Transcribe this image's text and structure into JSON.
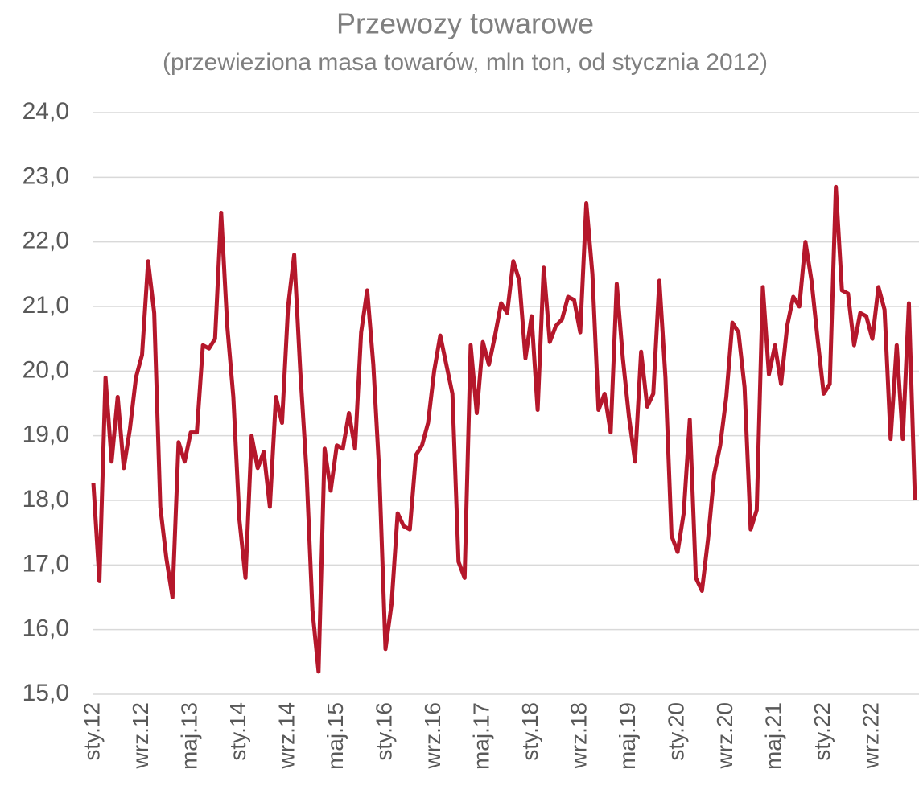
{
  "chart_data": {
    "type": "line",
    "title": "Przewozy towarowe",
    "subtitle": "(przewieziona masa towarów, mln ton, od stycznia 2012)",
    "categories": [
      "sty.12",
      null,
      null,
      null,
      null,
      null,
      null,
      null,
      "wrz.12",
      null,
      null,
      null,
      null,
      null,
      null,
      null,
      "maj.13",
      null,
      null,
      null,
      null,
      null,
      null,
      null,
      "sty.14",
      null,
      null,
      null,
      null,
      null,
      null,
      null,
      "wrz.14",
      null,
      null,
      null,
      null,
      null,
      null,
      null,
      "maj.15",
      null,
      null,
      null,
      null,
      null,
      null,
      null,
      "sty.16",
      null,
      null,
      null,
      null,
      null,
      null,
      null,
      "wrz.16",
      null,
      null,
      null,
      null,
      null,
      null,
      null,
      "maj.17",
      null,
      null,
      null,
      null,
      null,
      null,
      null,
      "sty.18",
      null,
      null,
      null,
      null,
      null,
      null,
      null,
      "wrz.18",
      null,
      null,
      null,
      null,
      null,
      null,
      null,
      "maj.19",
      null,
      null,
      null,
      null,
      null,
      null,
      null,
      "sty.20",
      null,
      null,
      null,
      null,
      null,
      null,
      null,
      "wrz.20",
      null,
      null,
      null,
      null,
      null,
      null,
      null,
      "maj.21",
      null,
      null,
      null,
      null,
      null,
      null,
      null,
      "sty.22",
      null,
      null,
      null,
      null,
      null,
      null,
      null,
      "wrz.22",
      null,
      null,
      null,
      null,
      null,
      null,
      null
    ],
    "values": [
      18.27,
      16.75,
      19.9,
      18.6,
      19.6,
      18.5,
      19.1,
      19.9,
      20.25,
      21.7,
      20.9,
      17.9,
      17.1,
      16.5,
      18.9,
      18.6,
      19.05,
      19.05,
      20.4,
      20.35,
      20.5,
      22.45,
      20.7,
      19.6,
      17.7,
      16.8,
      19.0,
      18.5,
      18.75,
      17.9,
      19.6,
      19.2,
      21.0,
      21.8,
      20.0,
      18.5,
      16.3,
      15.35,
      18.8,
      18.15,
      18.85,
      18.8,
      19.35,
      18.8,
      20.6,
      21.25,
      20.1,
      18.4,
      15.7,
      16.4,
      17.8,
      17.6,
      17.55,
      18.7,
      18.85,
      19.2,
      20.0,
      20.55,
      20.1,
      19.65,
      17.05,
      16.8,
      20.4,
      19.35,
      20.45,
      20.1,
      20.55,
      21.05,
      20.9,
      21.7,
      21.4,
      20.2,
      20.85,
      19.4,
      21.6,
      20.45,
      20.7,
      20.8,
      21.15,
      21.1,
      20.6,
      22.6,
      21.5,
      19.4,
      19.65,
      19.05,
      21.35,
      20.2,
      19.3,
      18.6,
      20.3,
      19.45,
      19.65,
      21.4,
      19.9,
      17.45,
      17.2,
      17.8,
      19.25,
      16.8,
      16.6,
      17.4,
      18.4,
      18.85,
      19.6,
      20.75,
      20.6,
      19.75,
      17.55,
      17.85,
      21.3,
      19.95,
      20.4,
      19.8,
      20.7,
      21.15,
      21.0,
      22.0,
      21.4,
      20.5,
      19.65,
      19.8,
      22.85,
      21.25,
      21.2,
      20.4,
      20.9,
      20.85,
      20.5,
      21.3,
      20.95,
      18.95,
      20.4,
      18.95,
      21.05,
      18.0
    ],
    "color": "#b5172b",
    "ylim": [
      15,
      24
    ],
    "yticks": [
      {
        "value": 15,
        "label": "15,0"
      },
      {
        "value": 16,
        "label": "16,0"
      },
      {
        "value": 17,
        "label": "17,0"
      },
      {
        "value": 18,
        "label": "18,0"
      },
      {
        "value": 19,
        "label": "19,0"
      },
      {
        "value": 20,
        "label": "20,0"
      },
      {
        "value": 21,
        "label": "21,0"
      },
      {
        "value": 22,
        "label": "22,0"
      },
      {
        "value": 23,
        "label": "23,0"
      },
      {
        "value": 24,
        "label": "24,0"
      }
    ],
    "grid": true
  }
}
